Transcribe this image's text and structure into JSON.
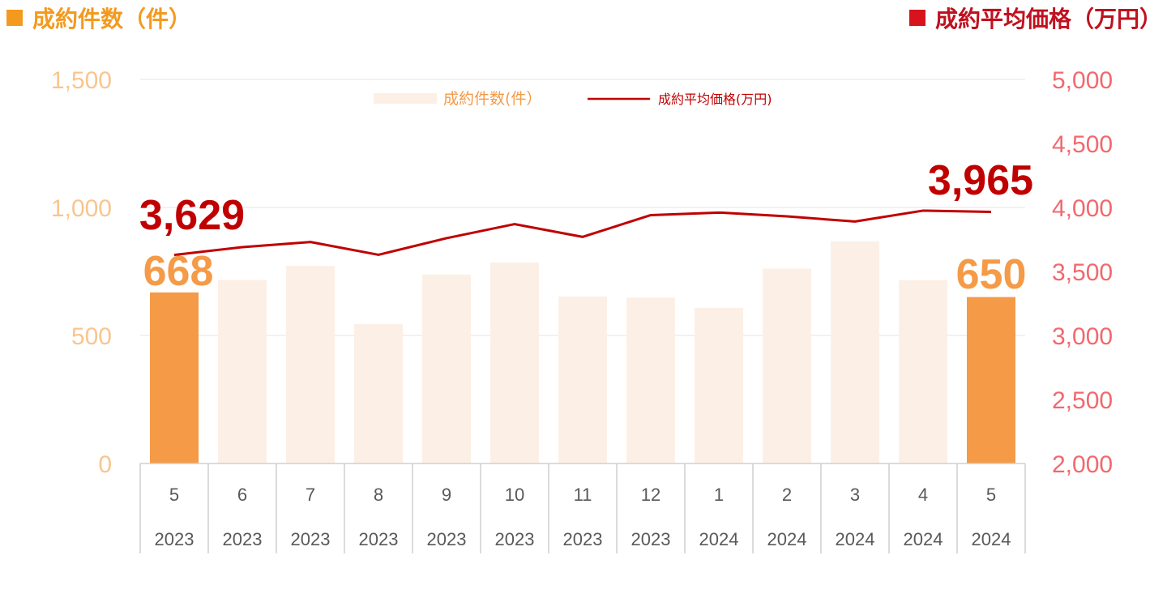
{
  "header": {
    "left_title": "成約件数（件）",
    "right_title": "成約平均価格（万円）"
  },
  "colors": {
    "bar": "#fcf0e6",
    "bar_highlight": "#f59a47",
    "line": "#c00000",
    "left_axis": "#f8c58f",
    "right_axis": "#f2686e",
    "label_count": "#f59a47",
    "label_price": "#c00000"
  },
  "chart_data": {
    "type": "bar",
    "categories": [
      {
        "month": "5",
        "year": "2023"
      },
      {
        "month": "6",
        "year": "2023"
      },
      {
        "month": "7",
        "year": "2023"
      },
      {
        "month": "8",
        "year": "2023"
      },
      {
        "month": "9",
        "year": "2023"
      },
      {
        "month": "10",
        "year": "2023"
      },
      {
        "month": "11",
        "year": "2023"
      },
      {
        "month": "12",
        "year": "2023"
      },
      {
        "month": "1",
        "year": "2024"
      },
      {
        "month": "2",
        "year": "2024"
      },
      {
        "month": "3",
        "year": "2024"
      },
      {
        "month": "4",
        "year": "2024"
      },
      {
        "month": "5",
        "year": "2024"
      }
    ],
    "series": [
      {
        "name": "成約件数(件)",
        "type": "bar",
        "axis": "left",
        "values": [
          668,
          717,
          772,
          545,
          738,
          785,
          652,
          648,
          608,
          761,
          868,
          716,
          650
        ],
        "highlight": [
          0,
          12
        ]
      },
      {
        "name": "成約平均価格(万円)",
        "type": "line",
        "axis": "right",
        "values": [
          3629,
          3690,
          3730,
          3630,
          3760,
          3870,
          3770,
          3940,
          3960,
          3930,
          3890,
          3975,
          3965
        ]
      }
    ],
    "y_left": {
      "min": 0,
      "max": 1500,
      "ticks": [
        "0",
        "500",
        "1,000",
        "1,500"
      ]
    },
    "y_right": {
      "min": 2000,
      "max": 5000,
      "ticks": [
        "2,000",
        "2,500",
        "3,000",
        "3,500",
        "4,000",
        "4,500",
        "5,000"
      ]
    },
    "annotations": {
      "first_count": "668",
      "last_count": "650",
      "first_price": "3,629",
      "last_price": "3,965"
    },
    "legend": {
      "placement": "top-center",
      "bar_label": "成約件数(件）",
      "line_label": "成約平均価格(万円)"
    },
    "grid": true
  }
}
